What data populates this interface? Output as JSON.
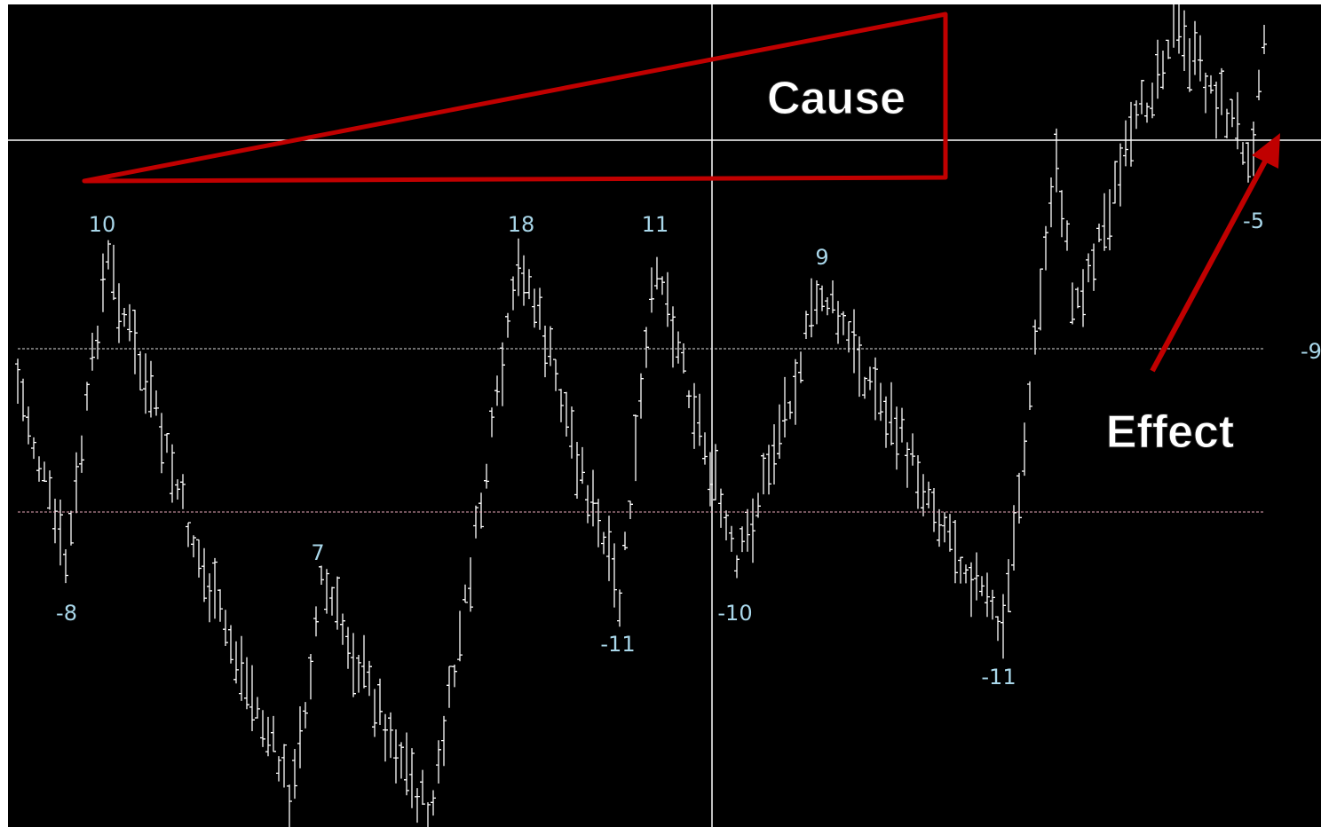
{
  "annotations": {
    "cause": "Cause",
    "effect": "Effect"
  },
  "swing_labels": [
    "10",
    "-8",
    "7",
    "18",
    "-11",
    "11",
    "-10",
    "9",
    "-11",
    "-5",
    "-9"
  ]
}
